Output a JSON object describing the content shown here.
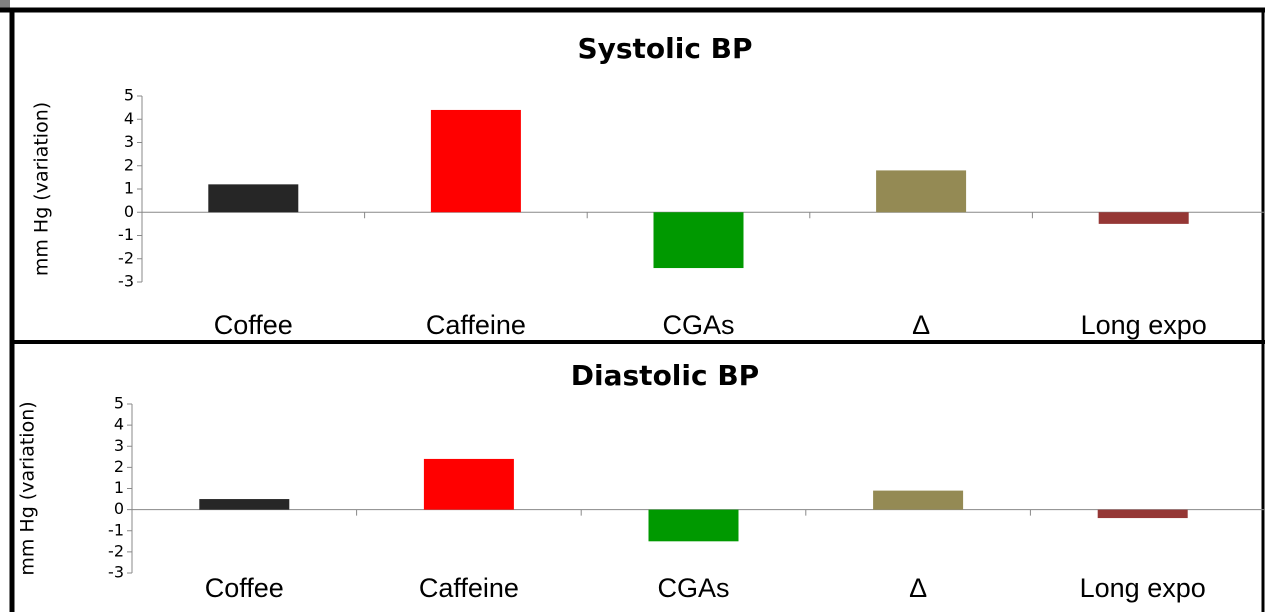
{
  "chart_data": [
    {
      "type": "bar",
      "title": "Systolic BP",
      "ylabel": "mm Hg (variation)",
      "categories": [
        "Coffee",
        "Caffeine",
        "CGAs",
        "Δ",
        "Long expo"
      ],
      "values": [
        1.2,
        4.4,
        -2.4,
        1.8,
        -0.5
      ],
      "colors": [
        "#262626",
        "#ff0000",
        "#009900",
        "#948a54",
        "#953735"
      ],
      "ylim": [
        -3,
        5
      ],
      "yticks": [
        -3,
        -2,
        -1,
        0,
        1,
        2,
        3,
        4,
        5
      ]
    },
    {
      "type": "bar",
      "title": "Diastolic BP",
      "ylabel": "mm Hg (variation)",
      "categories": [
        "Coffee",
        "Caffeine",
        "CGAs",
        "Δ",
        "Long expo"
      ],
      "values": [
        0.5,
        2.4,
        -1.5,
        0.9,
        -0.4
      ],
      "colors": [
        "#262626",
        "#ff0000",
        "#009900",
        "#948a54",
        "#953735"
      ],
      "ylim": [
        -3,
        5
      ],
      "yticks": [
        -3,
        -2,
        -1,
        0,
        1,
        2,
        3,
        4,
        5
      ]
    }
  ]
}
